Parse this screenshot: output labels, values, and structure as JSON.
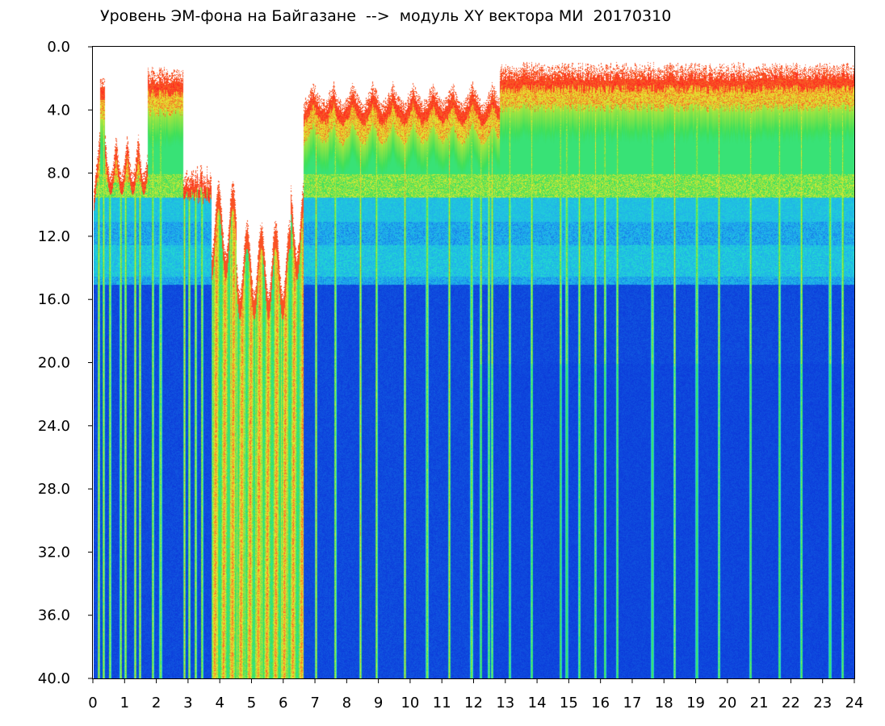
{
  "chart_data": {
    "type": "heatmap",
    "title": "Уровень ЭМ-фона на Байгазане  -->  модуль XY вектора МИ  20170310",
    "x_ticks": [
      "0",
      "1",
      "2",
      "3",
      "4",
      "5",
      "6",
      "7",
      "8",
      "9",
      "10",
      "11",
      "12",
      "13",
      "14",
      "15",
      "16",
      "17",
      "18",
      "19",
      "20",
      "21",
      "22",
      "23",
      "24"
    ],
    "y_ticks": [
      "0.0",
      "4.0",
      "8.0",
      "12.0",
      "16.0",
      "20.0",
      "24.0",
      "28.0",
      "32.0",
      "36.0",
      "40.0"
    ],
    "xlim": [
      0,
      24
    ],
    "ylim": [
      0,
      40
    ],
    "y_inverted": true,
    "grid": false,
    "colors": {
      "frame": "#000000",
      "background": "#ffffff",
      "colormap": [
        "#0a2fd8",
        "#1fa8f0",
        "#23e6c8",
        "#3fe05a",
        "#e8e830",
        "#ff2020"
      ]
    },
    "regions": [
      {
        "x_start": 0.0,
        "x_end": 3.7,
        "description_level": "mixed"
      },
      {
        "x_start": 3.7,
        "x_end": 6.6,
        "description_level": "high"
      },
      {
        "x_start": 6.6,
        "x_end": 24.0,
        "description_level": "mixed"
      }
    ]
  }
}
